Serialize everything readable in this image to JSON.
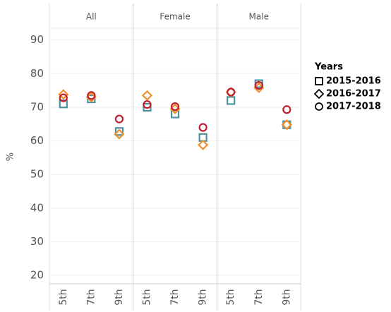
{
  "chart_data": {
    "type": "scatter",
    "panels": [
      "All",
      "Female",
      "Male"
    ],
    "categories": [
      "5th",
      "7th",
      "9th"
    ],
    "ylabel": "%",
    "ylim": [
      17.5,
      93.5
    ],
    "yticks": [
      20,
      30,
      40,
      50,
      60,
      70,
      80,
      90
    ],
    "grid": true,
    "legend_title": "Years",
    "legend": "right",
    "series": [
      {
        "name": "2015-2016",
        "marker": "square",
        "color": "#4e8fa0",
        "values": [
          [
            71,
            72.5,
            62.8
          ],
          [
            70,
            68,
            61
          ],
          [
            72,
            77,
            64.8
          ]
        ]
      },
      {
        "name": "2016-2017",
        "marker": "diamond",
        "color": "#f28e2b",
        "values": [
          [
            73.8,
            73,
            62
          ],
          [
            73.5,
            69.5,
            58.8
          ],
          [
            74.5,
            75.8,
            64.8
          ]
        ]
      },
      {
        "name": "2017-2018",
        "marker": "circle",
        "color": "#c0202e",
        "values": [
          [
            72.8,
            73.5,
            66.5
          ],
          [
            70.8,
            70.2,
            64
          ],
          [
            74.5,
            76.5,
            69.3
          ]
        ]
      }
    ]
  }
}
